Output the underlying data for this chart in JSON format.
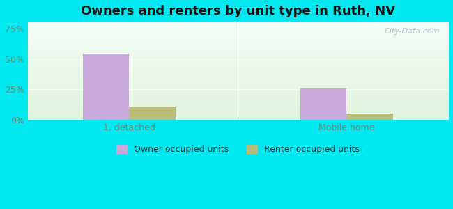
{
  "title": "Owners and renters by unit type in Ruth, NV",
  "categories": [
    "1, detached",
    "Mobile home"
  ],
  "owner_values": [
    0.546,
    0.257
  ],
  "renter_values": [
    0.108,
    0.051
  ],
  "owner_color": "#c9a8dc",
  "renter_color": "#b8bc78",
  "yticks": [
    0,
    0.25,
    0.5,
    0.75
  ],
  "ytick_labels": [
    "0%",
    "25%",
    "50%",
    "75%"
  ],
  "ylim": [
    0,
    0.8
  ],
  "background_outer": "#00e8f0",
  "background_inner_topleft": "#daeede",
  "background_inner_topright": "#eaf5f5",
  "background_inner_bottom": "#e8f5e0",
  "bar_width": 0.32,
  "group_positions": [
    1.0,
    2.5
  ],
  "legend_labels": [
    "Owner occupied units",
    "Renter occupied units"
  ],
  "watermark": "City-Data.com",
  "title_fontsize": 13,
  "tick_fontsize": 9,
  "legend_fontsize": 9
}
